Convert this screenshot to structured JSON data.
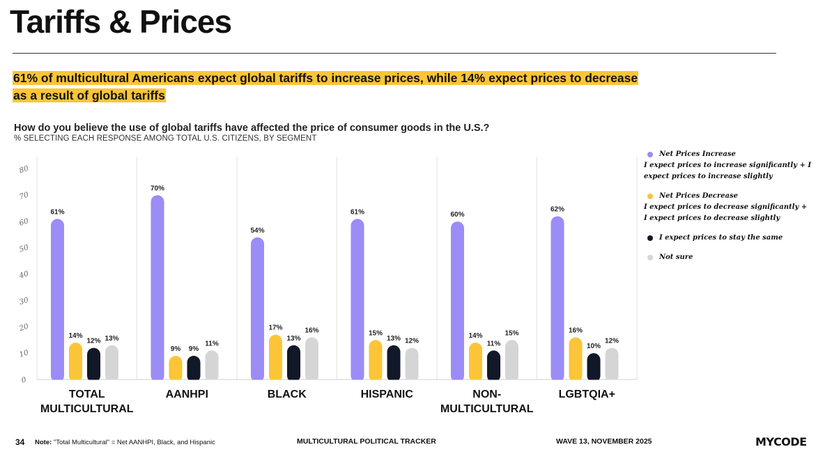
{
  "page": {
    "title": "Tariffs & Prices",
    "headline": "61% of multicultural Americans expect global tariffs to increase prices, while 14% expect prices to decrease as a result of global tariffs",
    "question": "How do you believe the use of global tariffs have affected the price of consumer goods in the U.S.?",
    "subquestion": "% SELECTING EACH RESPONSE AMONG TOTAL U.S. CITIZENS, BY SEGMENT"
  },
  "legend": [
    {
      "title": "Net Prices Increase",
      "desc": "I expect prices to increase significantly + I expect prices to increase slightly",
      "color": "#9b8cf6"
    },
    {
      "title": "Net Prices Decrease",
      "desc": "I expect prices to decrease significantly + I expect prices to decrease slightly",
      "color": "#fcc537"
    },
    {
      "title": "I expect prices to stay the same",
      "desc": "",
      "color": "#111827"
    },
    {
      "title": "Not sure",
      "desc": "",
      "color": "#d5d5d5"
    }
  ],
  "footer": {
    "page_number": "34",
    "note_label": "Note:",
    "note_text": "\"Total Multicultural\" = Net AANHPI, Black, and Hispanic",
    "tracker": "MULTICULTURAL POLITICAL TRACKER",
    "wave": "WAVE 13, NOVEMBER 2025",
    "logo": "MYCODE"
  },
  "chart_data": {
    "type": "bar",
    "title": "How do you believe the use of global tariffs have affected the price of consumer goods in the U.S.?",
    "xlabel": "",
    "ylabel": "",
    "ylim": [
      0,
      80
    ],
    "yticks": [
      0,
      10,
      20,
      30,
      40,
      50,
      60,
      70,
      80
    ],
    "grid": "vertical separators",
    "legend_position": "right",
    "categories": [
      [
        "TOTAL",
        "MULTICULTURAL"
      ],
      [
        "AANHPI"
      ],
      [
        "BLACK"
      ],
      [
        "HISPANIC"
      ],
      [
        "NON-",
        "MULTICULTURAL"
      ],
      [
        "LGBTQIA+"
      ]
    ],
    "series": [
      {
        "name": "Net Prices Increase",
        "color": "#9b8cf6",
        "values": [
          61,
          70,
          54,
          61,
          60,
          62
        ],
        "labels": [
          "61%",
          "70%",
          "54%",
          "61%",
          "60%",
          "62%"
        ]
      },
      {
        "name": "Net Prices Decrease",
        "color": "#fcc537",
        "values": [
          14,
          9,
          17,
          15,
          14,
          16
        ],
        "labels": [
          "14%",
          "9%",
          "17%",
          "15%",
          "14%",
          "16%"
        ]
      },
      {
        "name": "I expect prices to stay the same",
        "color": "#111827",
        "values": [
          12,
          9,
          13,
          13,
          11,
          10
        ],
        "labels": [
          "12%",
          "9%",
          "13%",
          "13%",
          "11%",
          "10%"
        ]
      },
      {
        "name": "Not sure",
        "color": "#d5d5d5",
        "values": [
          13,
          11,
          16,
          12,
          15,
          12
        ],
        "labels": [
          "13%",
          "11%",
          "16%",
          "12%",
          "15%",
          "12%"
        ]
      }
    ]
  }
}
